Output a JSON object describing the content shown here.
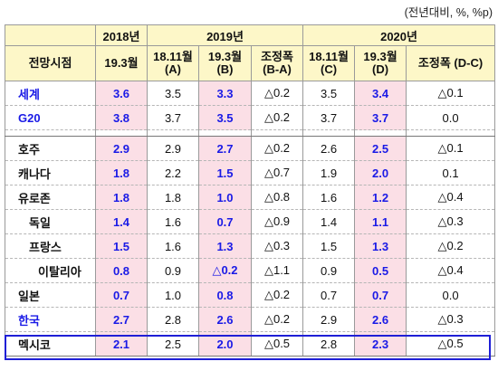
{
  "unit_note": "(전년대비, %, %p)",
  "header": {
    "years": [
      "2018년",
      "2019년",
      "2020년"
    ],
    "outlook_label": "전망시점",
    "cols": [
      "19.3월",
      "18.11월 (A)",
      "19.3월 (B)",
      "조정폭 (B-A)",
      "18.11월 (C)",
      "19.3월 (D)",
      "조정폭 (D-C)"
    ]
  },
  "rows": [
    {
      "label": "세계",
      "v": [
        "3.6",
        "3.5",
        "3.3",
        "△0.2",
        "3.5",
        "3.4",
        "△0.1"
      ]
    },
    {
      "label": "G20",
      "v": [
        "3.8",
        "3.7",
        "3.5",
        "△0.2",
        "3.7",
        "3.7",
        "0.0"
      ]
    },
    {
      "label": "호주",
      "v": [
        "2.9",
        "2.9",
        "2.7",
        "△0.2",
        "2.6",
        "2.5",
        "△0.1"
      ]
    },
    {
      "label": "캐나다",
      "v": [
        "1.8",
        "2.2",
        "1.5",
        "△0.7",
        "1.9",
        "2.0",
        "0.1"
      ]
    },
    {
      "label": "유로존",
      "v": [
        "1.8",
        "1.8",
        "1.0",
        "△0.8",
        "1.6",
        "1.2",
        "△0.4"
      ]
    },
    {
      "label": "독일",
      "v": [
        "1.4",
        "1.6",
        "0.7",
        "△0.9",
        "1.4",
        "1.1",
        "△0.3"
      ]
    },
    {
      "label": "프랑스",
      "v": [
        "1.5",
        "1.6",
        "1.3",
        "△0.3",
        "1.5",
        "1.3",
        "△0.2"
      ]
    },
    {
      "label": "이탈리아",
      "v": [
        "0.8",
        "0.9",
        "△0.2",
        "△1.1",
        "0.9",
        "0.5",
        "△0.4"
      ]
    },
    {
      "label": "일본",
      "v": [
        "0.7",
        "1.0",
        "0.8",
        "△0.2",
        "0.7",
        "0.7",
        "0.0"
      ]
    },
    {
      "label": "한국",
      "v": [
        "2.7",
        "2.8",
        "2.6",
        "△0.2",
        "2.9",
        "2.6",
        "△0.3"
      ]
    },
    {
      "label": "멕시코",
      "v": [
        "2.1",
        "2.5",
        "2.0",
        "△0.5",
        "2.8",
        "2.3",
        "△0.5"
      ]
    }
  ],
  "colors": {
    "header_bg": "#fdf7c8",
    "highlight_bg": "#fbdfe6",
    "blue_text": "#1a1ae6",
    "box_border": "#1f1fd6"
  }
}
